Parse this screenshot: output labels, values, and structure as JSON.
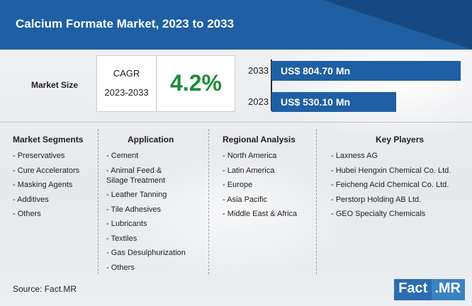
{
  "title": "Calcium Formate Market, 2023 to 2033",
  "market_size_label": "Market Size",
  "cagr": {
    "label": "CAGR",
    "period": "2023-2033",
    "value": "4.2%"
  },
  "chart_data": {
    "type": "bar",
    "orientation": "horizontal",
    "categories": [
      "2033",
      "2023"
    ],
    "values": [
      804.7,
      530.1
    ],
    "value_labels": [
      "US$ 804.70 Mn",
      "US$ 530.10 Mn"
    ],
    "unit": "US$ Mn",
    "xlim": [
      0,
      850
    ]
  },
  "columns": [
    {
      "title": "Market Segments",
      "items": [
        "- Preservatives",
        "- Cure Accelerators",
        "- Masking Agents",
        "- Additives",
        "- Others"
      ]
    },
    {
      "title": "Application",
      "items": [
        "- Cement",
        "- Animal Feed &\n  Silage Treatment",
        "- Leather Tanning",
        "- Tile Adhesives",
        "- Lubricants",
        "- Textiles",
        "- Gas Desulphurization",
        "- Others"
      ]
    },
    {
      "title": "Regional Analysis",
      "items": [
        "- North America",
        "- Latin America",
        "- Europe",
        "- Asia Pacific",
        "- Middle East & Africa"
      ]
    },
    {
      "title": "Key Players",
      "items": [
        "- Laxness AG",
        "- Hubei Hengxin Chemical Co. Ltd.",
        "- Feicheng Acid Chemical Co. Ltd.",
        "- Perstorp Holding AB Ltd.",
        "- GEO Specialty Chemicals"
      ]
    }
  ],
  "source": "Source: Fact.MR",
  "logo": {
    "part1": "Fact",
    "part2": ".MR"
  },
  "colors": {
    "header": "#1f5fa3",
    "bar": "#1f5fa3",
    "cagr": "#1f8a3a"
  }
}
